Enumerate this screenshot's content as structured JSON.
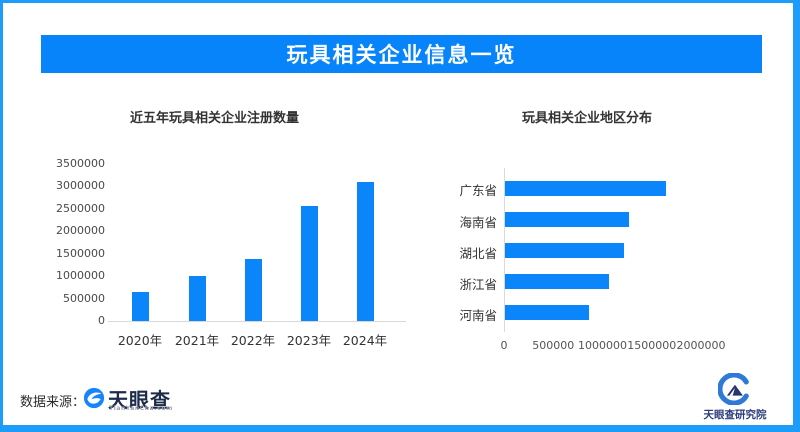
{
  "header": {
    "title": "玩具相关企业信息一览"
  },
  "chart_data": [
    {
      "type": "bar",
      "orientation": "vertical",
      "title": "近五年玩具相关企业注册数量",
      "categories": [
        "2020年",
        "2021年",
        "2022年",
        "2023年",
        "2024年"
      ],
      "values": [
        650000,
        1000000,
        1380000,
        2550000,
        3100000
      ],
      "ylim": [
        0,
        3500000
      ],
      "yticks": [
        0,
        500000,
        1000000,
        1500000,
        2000000,
        2500000,
        3000000,
        3500000
      ],
      "grid": false,
      "legend": "none",
      "bar_color": "#0b86fa"
    },
    {
      "type": "bar",
      "orientation": "horizontal",
      "title": "玩具相关企业地区分布",
      "categories": [
        "广东省",
        "海南省",
        "湖北省",
        "浙江省",
        "河南省"
      ],
      "values": [
        1630000,
        1260000,
        1210000,
        1060000,
        850000
      ],
      "xlim": [
        0,
        2000000
      ],
      "xticks": [
        0,
        500000,
        1000000,
        1500000,
        2000000
      ],
      "grid": false,
      "legend": "none",
      "bar_color": "#0b86fa"
    }
  ],
  "footer": {
    "source_label": "数据来源：",
    "source_brand": "天眼查",
    "source_brand_sub": "TianYanCha.com",
    "institute": "天眼查研究院"
  },
  "colors": {
    "frame_border": "#1e9cfa",
    "banner_bg": "#0784fa",
    "banner_text": "#ffffff",
    "bar": "#0b86fa",
    "axis_line": "#d9d9d9",
    "title_text": "#333333",
    "brand_text": "#1c2b4a",
    "institute_text": "#2b3d7c"
  }
}
